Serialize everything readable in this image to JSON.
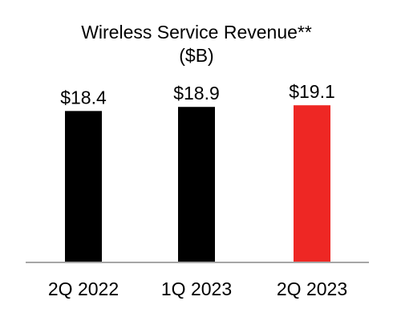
{
  "chart_data": {
    "type": "bar",
    "title": "Wireless Service Revenue**",
    "subtitle": "($B)",
    "categories": [
      "2Q 2022",
      "1Q 2023",
      "2Q 2023"
    ],
    "values": [
      18.4,
      18.9,
      19.1
    ],
    "value_labels": [
      "$18.4",
      "$18.9",
      "$19.1"
    ],
    "bar_colors": [
      "#000000",
      "#000000",
      "#ee2724"
    ],
    "axis_color": "#a6a6a6",
    "grid": false,
    "legend": "none",
    "xlabel": "",
    "ylabel": ""
  }
}
